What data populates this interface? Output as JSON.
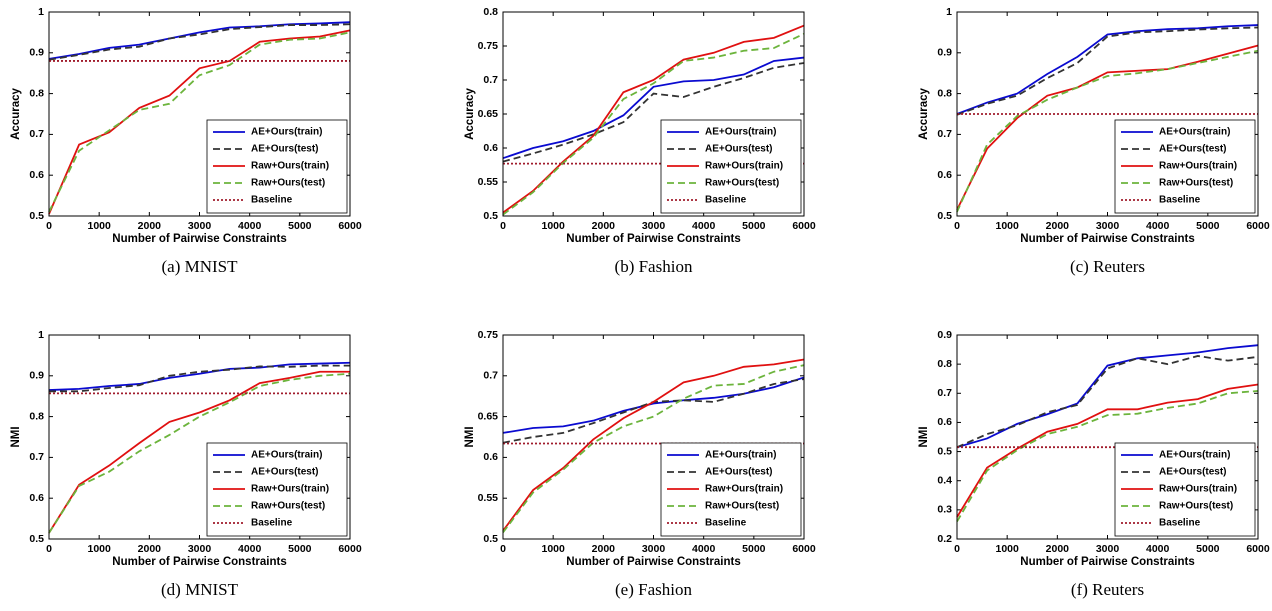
{
  "chart_data": [
    {
      "type": "line",
      "caption": "(a) MNIST",
      "xlabel": "Number of Pairwise Constraints",
      "ylabel": "Accuracy",
      "x": [
        0,
        600,
        1200,
        1800,
        2400,
        3000,
        3600,
        4200,
        4800,
        5400,
        6000
      ],
      "xlim": [
        0,
        6000
      ],
      "xticks": [
        0,
        1000,
        2000,
        3000,
        4000,
        5000,
        6000
      ],
      "ylim": [
        0.5,
        1
      ],
      "yticks": [
        0.5,
        0.6,
        0.7,
        0.8,
        0.9,
        1
      ],
      "legend": "lower right",
      "grid": false,
      "series": [
        {
          "name": "AE+Ours(train)",
          "color": "#0a0ad0",
          "style": "solid",
          "values": [
            0.885,
            0.897,
            0.912,
            0.92,
            0.935,
            0.95,
            0.962,
            0.965,
            0.97,
            0.972,
            0.975
          ]
        },
        {
          "name": "AE+Ours(test)",
          "color": "#333333",
          "style": "dashed",
          "values": [
            0.883,
            0.895,
            0.908,
            0.915,
            0.935,
            0.945,
            0.958,
            0.963,
            0.968,
            0.968,
            0.97
          ]
        },
        {
          "name": "Raw+Ours(train)",
          "color": "#e01010",
          "style": "solid",
          "values": [
            0.505,
            0.675,
            0.705,
            0.765,
            0.795,
            0.862,
            0.88,
            0.927,
            0.935,
            0.94,
            0.955
          ]
        },
        {
          "name": "Raw+Ours(test)",
          "color": "#6cb43c",
          "style": "dashed",
          "values": [
            0.51,
            0.66,
            0.71,
            0.76,
            0.775,
            0.845,
            0.87,
            0.92,
            0.932,
            0.935,
            0.95
          ]
        },
        {
          "name": "Baseline",
          "color": "#a01c2c",
          "style": "dotted",
          "values": [
            0.88,
            0.88,
            0.88,
            0.88,
            0.88,
            0.88,
            0.88,
            0.88,
            0.88,
            0.88,
            0.88
          ]
        }
      ]
    },
    {
      "type": "line",
      "caption": "(b) Fashion",
      "xlabel": "Number of Pairwise Constraints",
      "ylabel": "Accuracy",
      "x": [
        0,
        600,
        1200,
        1800,
        2400,
        3000,
        3600,
        4200,
        4800,
        5400,
        6000
      ],
      "xlim": [
        0,
        6000
      ],
      "xticks": [
        0,
        1000,
        2000,
        3000,
        4000,
        5000,
        6000
      ],
      "ylim": [
        0.5,
        0.8
      ],
      "yticks": [
        0.5,
        0.55,
        0.6,
        0.65,
        0.7,
        0.75,
        0.8
      ],
      "legend": "lower right",
      "grid": false,
      "series": [
        {
          "name": "AE+Ours(train)",
          "color": "#0a0ad0",
          "style": "solid",
          "values": [
            0.585,
            0.6,
            0.61,
            0.625,
            0.648,
            0.69,
            0.698,
            0.7,
            0.708,
            0.728,
            0.733
          ]
        },
        {
          "name": "AE+Ours(test)",
          "color": "#333333",
          "style": "dashed",
          "values": [
            0.58,
            0.592,
            0.605,
            0.62,
            0.638,
            0.68,
            0.675,
            0.69,
            0.703,
            0.718,
            0.725
          ]
        },
        {
          "name": "Raw+Ours(train)",
          "color": "#e01010",
          "style": "solid",
          "values": [
            0.505,
            0.537,
            0.58,
            0.618,
            0.682,
            0.7,
            0.73,
            0.74,
            0.756,
            0.762,
            0.78
          ]
        },
        {
          "name": "Raw+Ours(test)",
          "color": "#6cb43c",
          "style": "dashed",
          "values": [
            0.502,
            0.535,
            0.578,
            0.615,
            0.672,
            0.695,
            0.728,
            0.733,
            0.743,
            0.747,
            0.768
          ]
        },
        {
          "name": "Baseline",
          "color": "#a01c2c",
          "style": "dotted",
          "values": [
            0.577,
            0.577,
            0.577,
            0.577,
            0.577,
            0.577,
            0.577,
            0.577,
            0.577,
            0.577,
            0.577
          ]
        }
      ]
    },
    {
      "type": "line",
      "caption": "(c) Reuters",
      "xlabel": "Number of Pairwise Constraints",
      "ylabel": "Accuracy",
      "x": [
        0,
        600,
        1200,
        1800,
        2400,
        3000,
        3600,
        4200,
        4800,
        5400,
        6000
      ],
      "xlim": [
        0,
        6000
      ],
      "xticks": [
        0,
        1000,
        2000,
        3000,
        4000,
        5000,
        6000
      ],
      "ylim": [
        0.5,
        1
      ],
      "yticks": [
        0.5,
        0.6,
        0.7,
        0.8,
        0.9,
        1
      ],
      "legend": "lower right",
      "grid": false,
      "series": [
        {
          "name": "AE+Ours(train)",
          "color": "#0a0ad0",
          "style": "solid",
          "values": [
            0.75,
            0.778,
            0.8,
            0.848,
            0.89,
            0.945,
            0.953,
            0.958,
            0.96,
            0.965,
            0.968
          ]
        },
        {
          "name": "AE+Ours(test)",
          "color": "#333333",
          "style": "dashed",
          "values": [
            0.748,
            0.775,
            0.795,
            0.838,
            0.875,
            0.94,
            0.95,
            0.953,
            0.957,
            0.96,
            0.962
          ]
        },
        {
          "name": "Raw+Ours(train)",
          "color": "#e01010",
          "style": "solid",
          "values": [
            0.515,
            0.665,
            0.74,
            0.795,
            0.815,
            0.852,
            0.856,
            0.86,
            0.878,
            0.898,
            0.918
          ]
        },
        {
          "name": "Raw+Ours(test)",
          "color": "#6cb43c",
          "style": "dashed",
          "values": [
            0.51,
            0.675,
            0.745,
            0.785,
            0.815,
            0.843,
            0.85,
            0.86,
            0.875,
            0.89,
            0.905
          ]
        },
        {
          "name": "Baseline",
          "color": "#a01c2c",
          "style": "dotted",
          "values": [
            0.75,
            0.75,
            0.75,
            0.75,
            0.75,
            0.75,
            0.75,
            0.75,
            0.75,
            0.75,
            0.75
          ]
        }
      ]
    },
    {
      "type": "line",
      "caption": "(d) MNIST",
      "xlabel": "Number of Pairwise Constraints",
      "ylabel": "NMI",
      "x": [
        0,
        600,
        1200,
        1800,
        2400,
        3000,
        3600,
        4200,
        4800,
        5400,
        6000
      ],
      "xlim": [
        0,
        6000
      ],
      "xticks": [
        0,
        1000,
        2000,
        3000,
        4000,
        5000,
        6000
      ],
      "ylim": [
        0.5,
        1
      ],
      "yticks": [
        0.5,
        0.6,
        0.7,
        0.8,
        0.9,
        1
      ],
      "legend": "lower right",
      "grid": false,
      "series": [
        {
          "name": "AE+Ours(train)",
          "color": "#0a0ad0",
          "style": "solid",
          "values": [
            0.865,
            0.868,
            0.875,
            0.88,
            0.895,
            0.905,
            0.917,
            0.92,
            0.928,
            0.93,
            0.932
          ]
        },
        {
          "name": "AE+Ours(test)",
          "color": "#333333",
          "style": "dashed",
          "values": [
            0.862,
            0.862,
            0.87,
            0.877,
            0.9,
            0.91,
            0.915,
            0.923,
            0.922,
            0.925,
            0.925
          ]
        },
        {
          "name": "Raw+Ours(train)",
          "color": "#e01010",
          "style": "solid",
          "values": [
            0.515,
            0.633,
            0.68,
            0.735,
            0.787,
            0.81,
            0.84,
            0.882,
            0.895,
            0.91,
            0.91
          ]
        },
        {
          "name": "Raw+Ours(test)",
          "color": "#6cb43c",
          "style": "dashed",
          "values": [
            0.515,
            0.63,
            0.665,
            0.715,
            0.755,
            0.8,
            0.835,
            0.875,
            0.89,
            0.9,
            0.905
          ]
        },
        {
          "name": "Baseline",
          "color": "#a01c2c",
          "style": "dotted",
          "values": [
            0.857,
            0.857,
            0.857,
            0.857,
            0.857,
            0.857,
            0.857,
            0.857,
            0.857,
            0.857,
            0.857
          ]
        }
      ]
    },
    {
      "type": "line",
      "caption": "(e) Fashion",
      "xlabel": "Number of Pairwise Constraints",
      "ylabel": "NMI",
      "x": [
        0,
        600,
        1200,
        1800,
        2400,
        3000,
        3600,
        4200,
        4800,
        5400,
        6000
      ],
      "xlim": [
        0,
        6000
      ],
      "xticks": [
        0,
        1000,
        2000,
        3000,
        4000,
        5000,
        6000
      ],
      "ylim": [
        0.5,
        0.75
      ],
      "yticks": [
        0.5,
        0.55,
        0.6,
        0.65,
        0.7,
        0.75
      ],
      "legend": "lower right",
      "grid": false,
      "series": [
        {
          "name": "AE+Ours(train)",
          "color": "#0a0ad0",
          "style": "solid",
          "values": [
            0.63,
            0.636,
            0.638,
            0.645,
            0.657,
            0.666,
            0.67,
            0.673,
            0.678,
            0.686,
            0.698
          ]
        },
        {
          "name": "AE+Ours(test)",
          "color": "#333333",
          "style": "dashed",
          "values": [
            0.618,
            0.625,
            0.63,
            0.642,
            0.655,
            0.668,
            0.67,
            0.668,
            0.678,
            0.69,
            0.696
          ]
        },
        {
          "name": "Raw+Ours(train)",
          "color": "#e01010",
          "style": "solid",
          "values": [
            0.51,
            0.56,
            0.587,
            0.622,
            0.648,
            0.668,
            0.692,
            0.7,
            0.711,
            0.714,
            0.72
          ]
        },
        {
          "name": "Raw+Ours(test)",
          "color": "#6cb43c",
          "style": "dashed",
          "values": [
            0.508,
            0.557,
            0.585,
            0.618,
            0.638,
            0.65,
            0.672,
            0.688,
            0.69,
            0.705,
            0.713
          ]
        },
        {
          "name": "Baseline",
          "color": "#a01c2c",
          "style": "dotted",
          "values": [
            0.617,
            0.617,
            0.617,
            0.617,
            0.617,
            0.617,
            0.617,
            0.617,
            0.617,
            0.617,
            0.617
          ]
        }
      ]
    },
    {
      "type": "line",
      "caption": "(f) Reuters",
      "xlabel": "Number of Pairwise Constraints",
      "ylabel": "NMI",
      "x": [
        0,
        600,
        1200,
        1800,
        2400,
        3000,
        3600,
        4200,
        4800,
        5400,
        6000
      ],
      "xlim": [
        0,
        6000
      ],
      "xticks": [
        0,
        1000,
        2000,
        3000,
        4000,
        5000,
        6000
      ],
      "ylim": [
        0.2,
        0.9
      ],
      "yticks": [
        0.2,
        0.3,
        0.4,
        0.5,
        0.6,
        0.7,
        0.8,
        0.9
      ],
      "legend": "lower right",
      "grid": false,
      "series": [
        {
          "name": "AE+Ours(train)",
          "color": "#0a0ad0",
          "style": "solid",
          "values": [
            0.515,
            0.545,
            0.595,
            0.628,
            0.665,
            0.795,
            0.82,
            0.83,
            0.84,
            0.855,
            0.865
          ]
        },
        {
          "name": "AE+Ours(test)",
          "color": "#333333",
          "style": "dashed",
          "values": [
            0.515,
            0.56,
            0.59,
            0.635,
            0.66,
            0.785,
            0.82,
            0.8,
            0.828,
            0.812,
            0.825
          ]
        },
        {
          "name": "Raw+Ours(train)",
          "color": "#e01010",
          "style": "solid",
          "values": [
            0.275,
            0.445,
            0.51,
            0.568,
            0.595,
            0.645,
            0.645,
            0.668,
            0.68,
            0.715,
            0.73
          ]
        },
        {
          "name": "Raw+Ours(test)",
          "color": "#6cb43c",
          "style": "dashed",
          "values": [
            0.26,
            0.435,
            0.505,
            0.56,
            0.585,
            0.625,
            0.63,
            0.65,
            0.665,
            0.7,
            0.708
          ]
        },
        {
          "name": "Baseline",
          "color": "#a01c2c",
          "style": "dotted",
          "values": [
            0.515,
            0.515,
            0.515,
            0.515,
            0.515,
            0.515,
            0.515,
            0.515,
            0.515,
            0.515,
            0.515
          ]
        }
      ]
    }
  ]
}
